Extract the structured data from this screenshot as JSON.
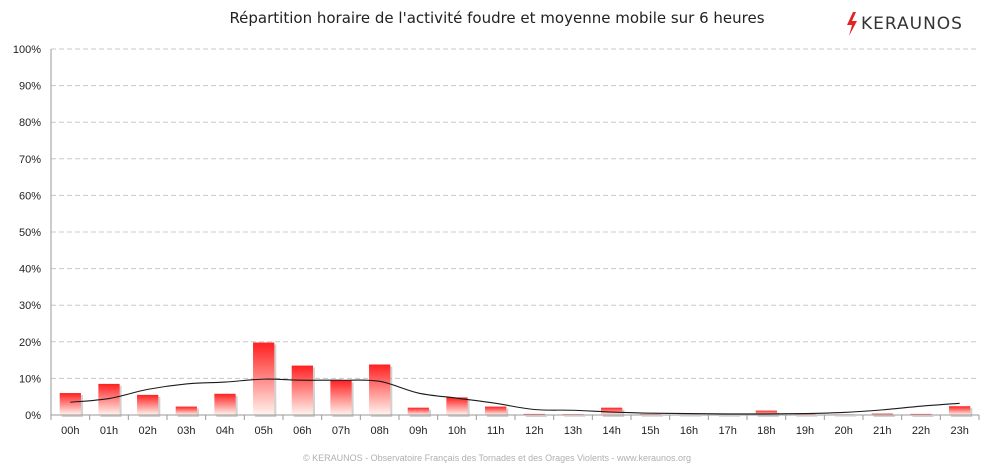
{
  "header": {
    "title": "Répartition horaire de l'activité foudre et moyenne mobile sur 6 heures",
    "logo_text": "KERAUNOS"
  },
  "footer": {
    "text": "© KERAUNOS - Observatoire Français des Tornades et des Orages Violents - www.keraunos.org"
  },
  "colors": {
    "bar_top": "#ff2020",
    "bar_bottom": "#fff4ee",
    "line": "#1a1a1a",
    "grid": "#c8c8c8",
    "logo_bolt": "#e42222"
  },
  "chart_data": {
    "type": "bar",
    "title": "Répartition horaire de l'activité foudre et moyenne mobile sur 6 heures",
    "categories": [
      "00h",
      "01h",
      "02h",
      "03h",
      "04h",
      "05h",
      "06h",
      "07h",
      "08h",
      "09h",
      "10h",
      "11h",
      "12h",
      "13h",
      "14h",
      "15h",
      "16h",
      "17h",
      "18h",
      "19h",
      "20h",
      "21h",
      "22h",
      "23h"
    ],
    "series": [
      {
        "kind": "bar",
        "values": [
          6.0,
          8.5,
          5.5,
          2.3,
          5.8,
          19.8,
          13.5,
          9.5,
          13.8,
          2.0,
          4.8,
          2.3,
          0.3,
          0.2,
          2.0,
          0.2,
          0.1,
          0.2,
          1.2,
          0.2,
          0.1,
          0.4,
          0.3,
          2.4
        ]
      },
      {
        "kind": "line",
        "values": [
          3.5,
          4.5,
          7.0,
          8.5,
          9.0,
          9.8,
          9.5,
          9.5,
          9.2,
          6.0,
          4.6,
          3.2,
          1.5,
          1.3,
          0.8,
          0.5,
          0.4,
          0.3,
          0.3,
          0.4,
          0.7,
          1.4,
          2.4,
          3.2
        ]
      }
    ],
    "yticks": [
      "0%",
      "10%",
      "20%",
      "30%",
      "40%",
      "50%",
      "60%",
      "70%",
      "80%",
      "90%",
      "100%"
    ],
    "ylim": [
      0,
      100
    ],
    "grid": true,
    "legend": "none"
  }
}
